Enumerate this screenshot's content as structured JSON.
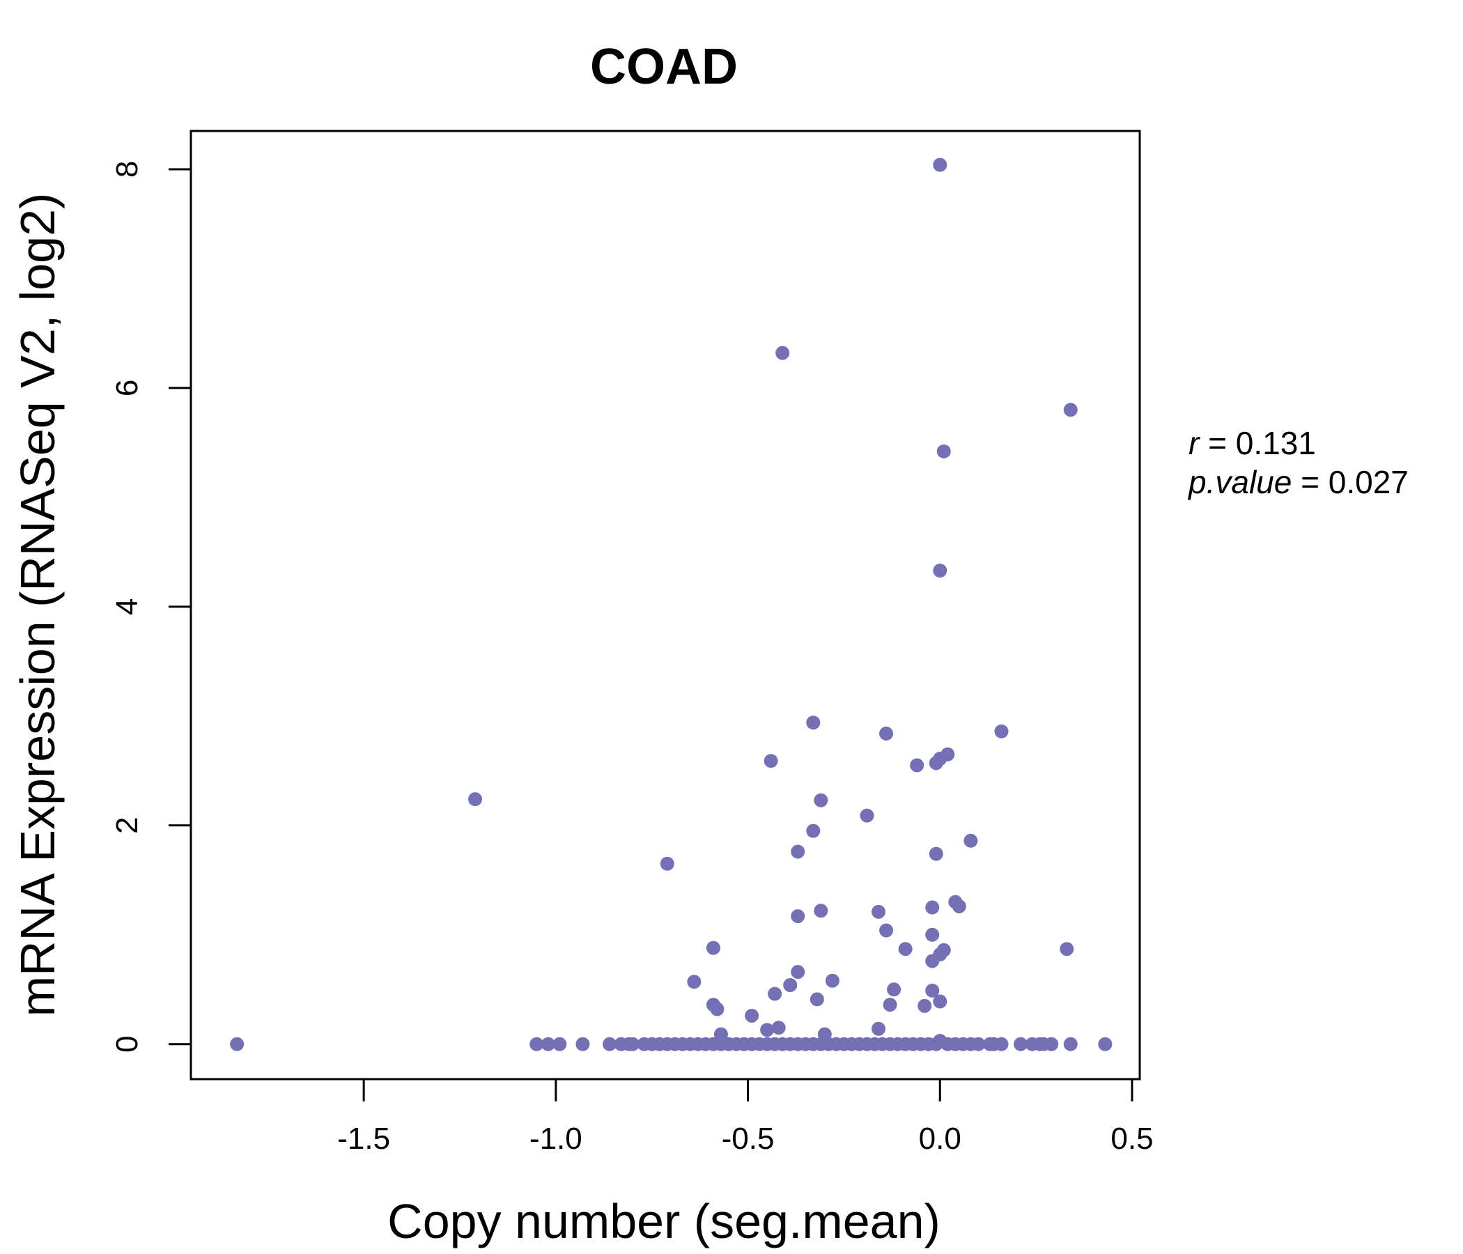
{
  "chart_data": {
    "type": "scatter",
    "title": "COAD",
    "xlabel": "Copy number (seg.mean)",
    "ylabel": "mRNA Expression (RNASeq V2, log2)",
    "xlim": [
      -1.95,
      0.52
    ],
    "ylim": [
      -0.32,
      8.35
    ],
    "x_ticks": [
      -1.5,
      -1.0,
      -0.5,
      0.0,
      0.5
    ],
    "x_tick_labels": [
      "-1.5",
      "-1.0",
      "-0.5",
      "0.0",
      "0.5"
    ],
    "y_ticks": [
      0,
      2,
      4,
      6,
      8
    ],
    "y_tick_labels": [
      "0",
      "2",
      "4",
      "6",
      "8"
    ],
    "grid": false,
    "point_color": "#7570b3",
    "annotation": {
      "r_label": "r",
      "r_value": "0.131",
      "p_label": "p.value",
      "p_value": "0.027"
    },
    "points": [
      [
        -1.83,
        0
      ],
      [
        -1.21,
        2.24
      ],
      [
        -0.71,
        1.65
      ],
      [
        -1.05,
        0
      ],
      [
        -1.02,
        0
      ],
      [
        -0.99,
        0
      ],
      [
        -0.93,
        0
      ],
      [
        -0.86,
        0
      ],
      [
        -0.83,
        0
      ],
      [
        -0.81,
        0
      ],
      [
        -0.8,
        0
      ],
      [
        -0.77,
        0
      ],
      [
        -0.75,
        0
      ],
      [
        -0.73,
        0
      ],
      [
        -0.71,
        0
      ],
      [
        -0.69,
        0
      ],
      [
        -0.67,
        0
      ],
      [
        -0.65,
        0
      ],
      [
        -0.63,
        0
      ],
      [
        -0.61,
        0
      ],
      [
        -0.59,
        0
      ],
      [
        -0.57,
        0
      ],
      [
        -0.55,
        0
      ],
      [
        -0.53,
        0
      ],
      [
        -0.51,
        0
      ],
      [
        -0.49,
        0
      ],
      [
        -0.47,
        0
      ],
      [
        -0.45,
        0
      ],
      [
        -0.43,
        0
      ],
      [
        -0.41,
        0
      ],
      [
        -0.39,
        0
      ],
      [
        -0.37,
        0
      ],
      [
        -0.35,
        0
      ],
      [
        -0.33,
        0
      ],
      [
        -0.31,
        0
      ],
      [
        -0.29,
        0
      ],
      [
        -0.27,
        0
      ],
      [
        -0.25,
        0
      ],
      [
        -0.23,
        0
      ],
      [
        -0.21,
        0
      ],
      [
        -0.19,
        0
      ],
      [
        -0.17,
        0
      ],
      [
        -0.15,
        0
      ],
      [
        -0.13,
        0
      ],
      [
        -0.11,
        0
      ],
      [
        -0.09,
        0
      ],
      [
        -0.07,
        0
      ],
      [
        -0.05,
        0
      ],
      [
        -0.03,
        0
      ],
      [
        -0.01,
        0
      ],
      [
        0.0,
        0.03
      ],
      [
        0.02,
        0
      ],
      [
        0.04,
        0
      ],
      [
        0.06,
        0
      ],
      [
        0.08,
        0
      ],
      [
        0.1,
        0
      ],
      [
        0.13,
        0
      ],
      [
        0.14,
        0
      ],
      [
        0.16,
        0
      ],
      [
        0.21,
        0
      ],
      [
        0.24,
        0
      ],
      [
        0.26,
        0
      ],
      [
        0.27,
        0
      ],
      [
        0.29,
        0
      ],
      [
        0.34,
        0
      ],
      [
        0.43,
        0
      ],
      [
        -0.64,
        0.57
      ],
      [
        -0.59,
        0.88
      ],
      [
        -0.59,
        0.36
      ],
      [
        -0.58,
        0.32
      ],
      [
        -0.57,
        0.09
      ],
      [
        -0.49,
        0.26
      ],
      [
        -0.45,
        0.13
      ],
      [
        -0.42,
        0.15
      ],
      [
        -0.43,
        0.46
      ],
      [
        -0.39,
        0.54
      ],
      [
        -0.37,
        0.66
      ],
      [
        -0.37,
        1.17
      ],
      [
        -0.37,
        1.76
      ],
      [
        -0.33,
        1.95
      ],
      [
        -0.32,
        0.41
      ],
      [
        -0.31,
        1.22
      ],
      [
        -0.3,
        0.09
      ],
      [
        -0.28,
        0.58
      ],
      [
        -0.31,
        2.23
      ],
      [
        -0.33,
        2.94
      ],
      [
        -0.44,
        2.59
      ],
      [
        -0.41,
        6.32
      ],
      [
        -0.19,
        2.09
      ],
      [
        -0.16,
        0.14
      ],
      [
        -0.16,
        1.21
      ],
      [
        -0.14,
        1.04
      ],
      [
        -0.14,
        2.84
      ],
      [
        -0.13,
        0.36
      ],
      [
        -0.12,
        0.5
      ],
      [
        -0.09,
        0.87
      ],
      [
        -0.06,
        2.55
      ],
      [
        -0.04,
        0.35
      ],
      [
        -0.02,
        0.49
      ],
      [
        -0.02,
        0.76
      ],
      [
        -0.02,
        1.0
      ],
      [
        -0.02,
        1.25
      ],
      [
        -0.01,
        2.57
      ],
      [
        -0.01,
        1.74
      ],
      [
        0.0,
        2.61
      ],
      [
        0.0,
        0.39
      ],
      [
        0.0,
        0.82
      ],
      [
        0.01,
        0.86
      ],
      [
        0.0,
        4.33
      ],
      [
        0.01,
        5.42
      ],
      [
        0.0,
        8.04
      ],
      [
        0.02,
        2.65
      ],
      [
        0.04,
        1.3
      ],
      [
        0.05,
        1.26
      ],
      [
        0.08,
        1.86
      ],
      [
        0.16,
        2.86
      ],
      [
        0.33,
        0.87
      ],
      [
        0.34,
        5.8
      ]
    ]
  }
}
